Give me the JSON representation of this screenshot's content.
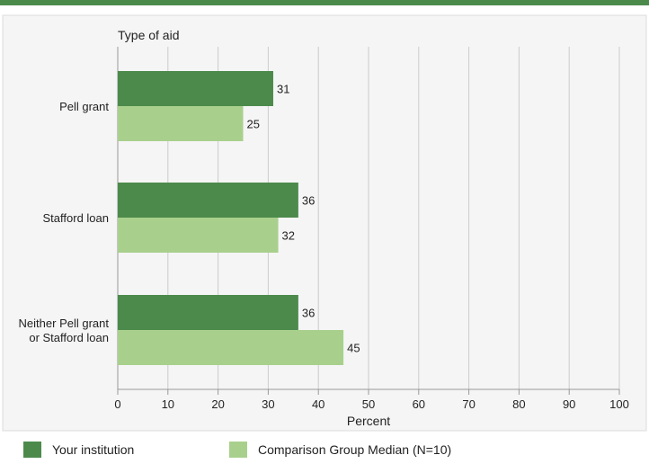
{
  "chart_data": {
    "type": "bar",
    "orientation": "horizontal",
    "title": "Type of aid",
    "xlabel": "Percent",
    "ylabel": "",
    "xlim": [
      0,
      100
    ],
    "xticks": [
      0,
      10,
      20,
      30,
      40,
      50,
      60,
      70,
      80,
      90,
      100
    ],
    "categories": [
      [
        "Pell grant"
      ],
      [
        "Stafford loan"
      ],
      [
        "Neither Pell grant",
        "or Stafford loan"
      ]
    ],
    "series": [
      {
        "name": "Your institution",
        "color": "#4c8a4c",
        "values": [
          31,
          36,
          36
        ]
      },
      {
        "name": "Comparison Group Median (N=10)",
        "color": "#a8d08c",
        "values": [
          25,
          32,
          45
        ]
      }
    ],
    "grid": true,
    "legend_position": "bottom-left"
  },
  "colors": {
    "accent": "#4c8a4c",
    "panel_background": "#f5f5f5",
    "gridline": "#cccccc"
  }
}
